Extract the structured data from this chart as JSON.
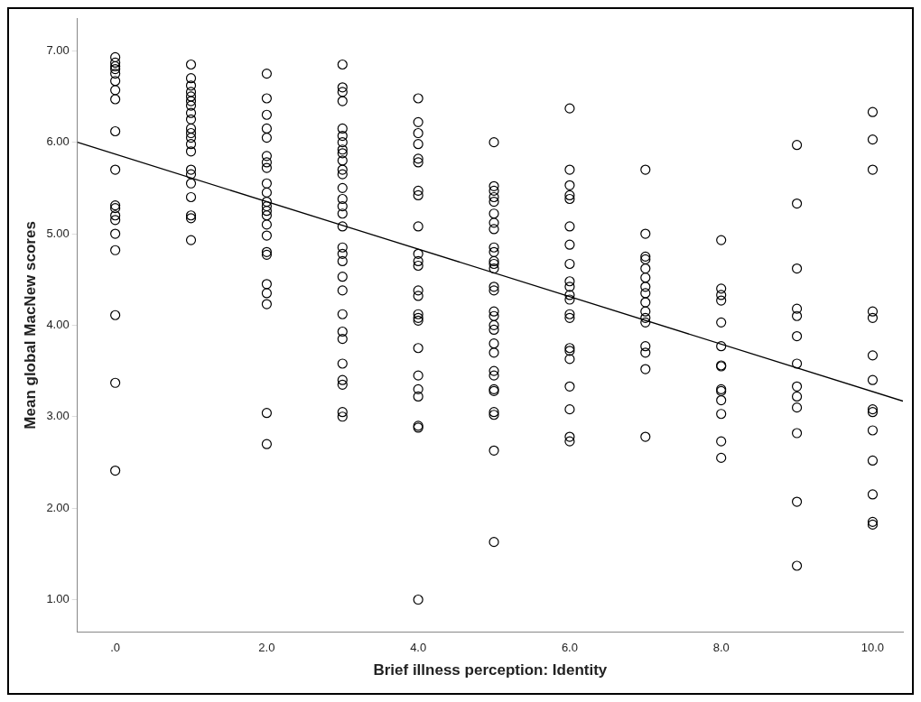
{
  "chart_data": {
    "type": "scatter",
    "xlabel": "Brief illness perception: Identity",
    "ylabel": "Mean global MacNew scores",
    "xlim": [
      -0.5,
      10.4
    ],
    "ylim": [
      0.65,
      7.35
    ],
    "xticks": [
      {
        "value": 0,
        "label": ".0"
      },
      {
        "value": 2,
        "label": "2.0"
      },
      {
        "value": 4,
        "label": "4.0"
      },
      {
        "value": 6,
        "label": "6.0"
      },
      {
        "value": 8,
        "label": "8.0"
      },
      {
        "value": 10,
        "label": "10.0"
      }
    ],
    "yticks": [
      {
        "value": 1,
        "label": "1.00"
      },
      {
        "value": 2,
        "label": "2.00"
      },
      {
        "value": 3,
        "label": "3.00"
      },
      {
        "value": 4,
        "label": "4.00"
      },
      {
        "value": 5,
        "label": "5.00"
      },
      {
        "value": 6,
        "label": "6.00"
      },
      {
        "value": 7,
        "label": "7.00"
      }
    ],
    "grid": false,
    "legend": false,
    "marker": "circle",
    "series": [
      {
        "color": "#000000",
        "x": [
          0,
          0,
          0,
          0,
          0,
          0,
          0,
          0,
          0,
          0,
          0,
          0,
          0,
          0,
          0,
          0,
          0,
          0,
          0,
          1,
          1,
          1,
          1,
          1,
          1,
          1,
          1,
          1,
          1,
          1,
          1,
          1,
          1,
          1,
          1,
          1,
          1,
          1,
          1,
          1,
          2,
          2,
          2,
          2,
          2,
          2,
          2,
          2,
          2,
          2,
          2,
          2,
          2,
          2,
          2,
          2,
          2,
          2,
          2,
          2,
          2,
          2,
          2,
          3,
          3,
          3,
          3,
          3,
          3,
          3,
          3,
          3,
          3,
          3,
          3,
          3,
          3,
          3,
          3,
          3,
          3,
          3,
          3,
          3,
          3,
          3,
          3,
          3,
          3,
          3,
          3,
          3,
          3,
          4,
          4,
          4,
          4,
          4,
          4,
          4,
          4,
          4,
          4,
          4,
          4,
          4,
          4,
          4,
          4,
          4,
          4,
          4,
          4,
          4,
          4,
          4,
          4,
          5,
          5,
          5,
          5,
          5,
          5,
          5,
          5,
          5,
          5,
          5,
          5,
          5,
          5,
          5,
          5,
          5,
          5,
          5,
          5,
          5,
          5,
          5,
          5,
          5,
          5,
          5,
          5,
          5,
          6,
          6,
          6,
          6,
          6,
          6,
          6,
          6,
          6,
          6,
          6,
          6,
          6,
          6,
          6,
          6,
          6,
          6,
          6,
          6,
          6,
          7,
          7,
          7,
          7,
          7,
          7,
          7,
          7,
          7,
          7,
          7,
          7,
          7,
          7,
          7,
          7,
          8,
          8,
          8,
          8,
          8,
          8,
          8,
          8,
          8,
          8,
          8,
          8,
          8,
          8,
          9,
          9,
          9,
          9,
          9,
          9,
          9,
          9,
          9,
          9,
          9,
          9,
          9,
          10,
          10,
          10,
          10,
          10,
          10,
          10,
          10,
          10,
          10,
          10,
          10,
          10,
          10
        ],
        "values": [
          6.93,
          6.87,
          6.83,
          6.8,
          6.75,
          6.67,
          6.57,
          6.47,
          6.12,
          5.7,
          5.31,
          5.28,
          5.2,
          5.15,
          5.0,
          4.82,
          4.11,
          3.37,
          2.41,
          6.85,
          6.7,
          6.62,
          6.55,
          6.5,
          6.45,
          6.4,
          6.32,
          6.25,
          6.15,
          6.1,
          6.05,
          5.98,
          5.9,
          5.7,
          5.65,
          5.55,
          5.4,
          5.2,
          5.17,
          4.93,
          6.75,
          6.48,
          6.3,
          6.15,
          6.05,
          5.85,
          5.78,
          5.72,
          5.55,
          5.45,
          5.35,
          5.3,
          5.25,
          5.2,
          5.1,
          4.98,
          4.8,
          4.77,
          4.45,
          4.35,
          4.23,
          3.04,
          2.7,
          6.85,
          6.6,
          6.55,
          6.45,
          6.15,
          6.07,
          6.0,
          5.92,
          5.88,
          5.8,
          5.7,
          5.65,
          5.5,
          5.38,
          5.3,
          5.22,
          5.08,
          4.85,
          4.78,
          4.7,
          4.53,
          4.38,
          4.12,
          3.93,
          3.85,
          3.58,
          3.4,
          3.35,
          3.05,
          3.0,
          6.48,
          6.22,
          6.1,
          5.98,
          5.82,
          5.78,
          5.47,
          5.42,
          5.08,
          4.78,
          4.7,
          4.65,
          4.38,
          4.32,
          4.12,
          4.08,
          4.05,
          3.75,
          3.45,
          3.3,
          3.22,
          2.9,
          2.88,
          1.0,
          6.0,
          5.52,
          5.47,
          5.4,
          5.35,
          5.22,
          5.12,
          5.05,
          4.85,
          4.8,
          4.7,
          4.67,
          4.62,
          4.42,
          4.38,
          4.15,
          4.1,
          4.0,
          3.95,
          3.8,
          3.7,
          3.5,
          3.45,
          3.3,
          3.28,
          3.05,
          3.02,
          2.63,
          1.63,
          6.37,
          5.7,
          5.53,
          5.42,
          5.38,
          5.08,
          4.88,
          4.67,
          4.48,
          4.42,
          4.33,
          4.28,
          4.12,
          4.08,
          3.75,
          3.72,
          3.63,
          3.33,
          3.08,
          2.78,
          2.73,
          5.7,
          5.0,
          4.75,
          4.72,
          4.62,
          4.52,
          4.42,
          4.35,
          4.25,
          4.15,
          4.08,
          4.03,
          3.77,
          3.7,
          3.52,
          2.78,
          4.93,
          4.4,
          4.33,
          4.27,
          4.03,
          3.77,
          3.56,
          3.55,
          3.3,
          3.28,
          3.18,
          3.03,
          2.73,
          2.55,
          5.97,
          5.33,
          4.62,
          4.18,
          4.1,
          3.88,
          3.58,
          3.33,
          3.22,
          3.1,
          2.82,
          2.07,
          1.37,
          6.33,
          6.03,
          5.7,
          4.15,
          4.08,
          3.67,
          3.4,
          3.08,
          3.05,
          2.85,
          2.52,
          2.15,
          1.85,
          1.82
        ]
      },
      {
        "type": "line",
        "color": "#000000",
        "marker": "none",
        "x": [
          -0.5,
          10.4
        ],
        "values": [
          6.0,
          3.17
        ]
      }
    ]
  }
}
